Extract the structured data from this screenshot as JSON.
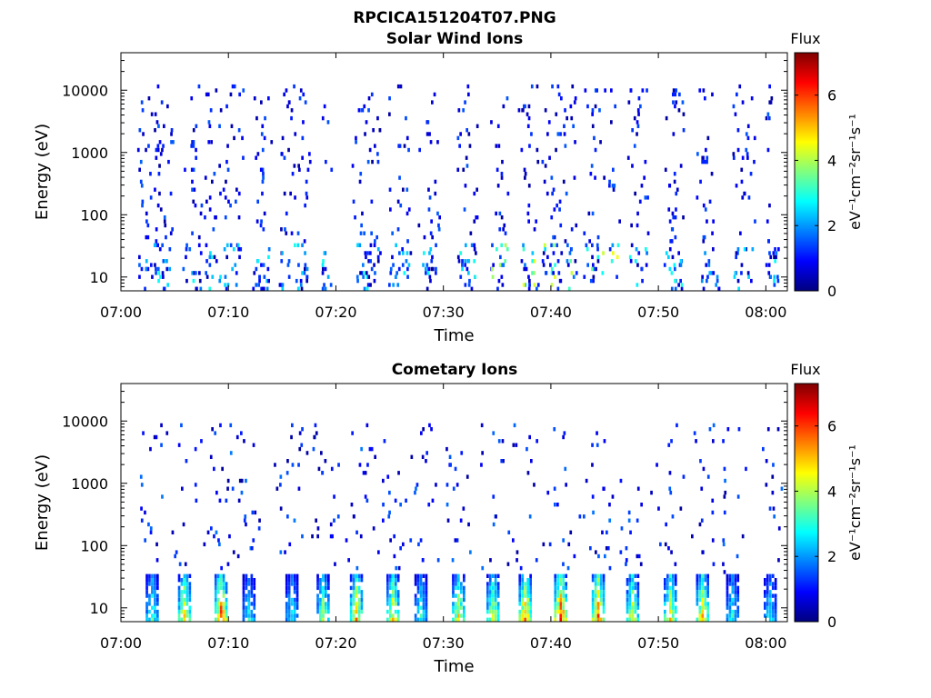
{
  "figure": {
    "title": "RPCICA151204T07.PNG"
  },
  "colormap": [
    "#00007f",
    "#0000ff",
    "#007fff",
    "#00ffff",
    "#7fff7f",
    "#ffff00",
    "#ff7f00",
    "#ff0000",
    "#7f0000"
  ],
  "chart_data": [
    {
      "type": "heatmap",
      "title": "Solar Wind Ions",
      "xlabel": "Time",
      "ylabel": "Energy (eV)",
      "x_range": [
        "07:00",
        "08:02"
      ],
      "x_ticks": [
        "07:00",
        "07:10",
        "07:20",
        "07:30",
        "07:40",
        "07:50",
        "08:00"
      ],
      "y_scale": "log",
      "ylim": [
        6,
        40000
      ],
      "y_ticks": [
        10,
        100,
        1000,
        10000
      ],
      "colorbar": {
        "title": "Flux",
        "label": "eV⁻¹cm⁻²sr⁻¹s⁻¹",
        "range": [
          0,
          7.3
        ],
        "ticks": [
          0,
          2,
          4,
          6
        ]
      },
      "sweep_times_min": [
        2.0,
        3.0,
        3.5,
        4.2,
        6.3,
        7.0,
        8.2,
        9.3,
        10.0,
        10.7,
        12.8,
        13.5,
        15.2,
        16.3,
        17.0,
        19.0,
        22.0,
        22.7,
        23.5,
        25.3,
        26.3,
        28.2,
        29.0,
        31.8,
        32.5,
        34.8,
        35.5,
        37.5,
        38.2,
        39.7,
        40.5,
        41.7,
        43.5,
        44.5,
        45.8,
        47.6,
        48.5,
        51.0,
        51.7,
        54.0,
        55.0,
        57.3,
        58.3,
        60.5
      ],
      "low_energy_activity": "mostly 0-3, peaks ~3-4.5 near 07:35-07:45",
      "high_energy_activity": "sparse 0-1.5"
    },
    {
      "type": "heatmap",
      "title": "Cometary Ions",
      "xlabel": "Time",
      "ylabel": "Energy (eV)",
      "x_range": [
        "07:00",
        "08:02"
      ],
      "x_ticks": [
        "07:00",
        "07:10",
        "07:20",
        "07:30",
        "07:40",
        "07:50",
        "08:00"
      ],
      "y_scale": "log",
      "ylim": [
        6,
        40000
      ],
      "y_ticks": [
        10,
        100,
        1000,
        10000
      ],
      "colorbar": {
        "title": "Flux",
        "label": "eV⁻¹cm⁻²sr⁻¹s⁻¹",
        "range": [
          0,
          7.3
        ],
        "ticks": [
          0,
          2,
          4,
          6
        ]
      },
      "bursts": [
        {
          "t_min": 2.8,
          "peak_flux": 3.5
        },
        {
          "t_min": 5.8,
          "peak_flux": 5.2
        },
        {
          "t_min": 9.2,
          "peak_flux": 6.2
        },
        {
          "t_min": 11.8,
          "peak_flux": 3.0
        },
        {
          "t_min": 15.8,
          "peak_flux": 3.2
        },
        {
          "t_min": 18.7,
          "peak_flux": 4.2
        },
        {
          "t_min": 21.8,
          "peak_flux": 5.4
        },
        {
          "t_min": 25.2,
          "peak_flux": 5.2
        },
        {
          "t_min": 27.8,
          "peak_flux": 3.2
        },
        {
          "t_min": 31.3,
          "peak_flux": 5.0
        },
        {
          "t_min": 34.5,
          "peak_flux": 4.8
        },
        {
          "t_min": 37.5,
          "peak_flux": 6.0
        },
        {
          "t_min": 40.8,
          "peak_flux": 6.7
        },
        {
          "t_min": 44.3,
          "peak_flux": 6.3
        },
        {
          "t_min": 47.5,
          "peak_flux": 4.8
        },
        {
          "t_min": 51.0,
          "peak_flux": 5.0
        },
        {
          "t_min": 54.0,
          "peak_flux": 5.3
        },
        {
          "t_min": 56.8,
          "peak_flux": 3.2
        },
        {
          "t_min": 60.3,
          "peak_flux": 3.0
        }
      ],
      "background_activity": "sparse 0-1.5 up to ~10000 eV"
    }
  ]
}
